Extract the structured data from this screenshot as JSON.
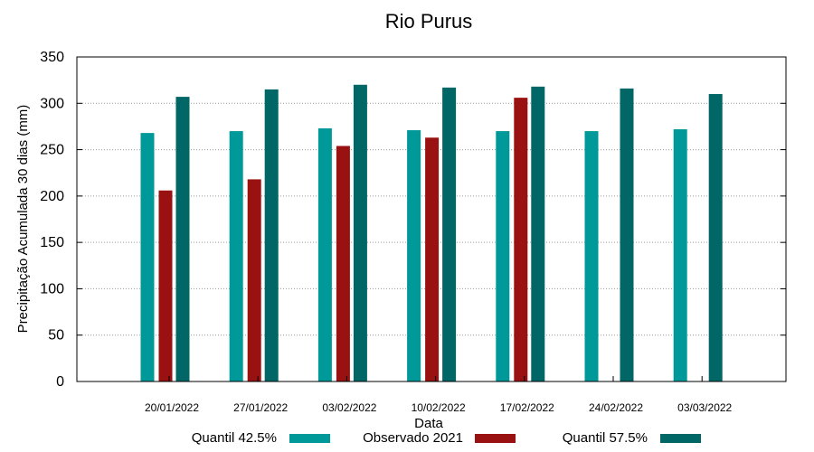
{
  "chart_data": {
    "type": "bar",
    "title": "Rio Purus",
    "xlabel": "Data",
    "ylabel": "Precipitação Acumulada 30 dias (mm)",
    "ylim": [
      0,
      350
    ],
    "yticks": [
      0,
      50,
      100,
      150,
      200,
      250,
      300,
      350
    ],
    "grid": true,
    "legend_position": "bottom",
    "categories": [
      "20/01/2022",
      "27/01/2022",
      "03/02/2022",
      "10/02/2022",
      "17/02/2022",
      "24/02/2022",
      "03/03/2022"
    ],
    "series": [
      {
        "name": "Quantil 42.5%",
        "color": "#009999",
        "values": [
          268,
          270,
          273,
          271,
          270,
          270,
          272
        ]
      },
      {
        "name": "Observado 2021",
        "color": "#991111",
        "values": [
          206,
          218,
          254,
          263,
          306,
          null,
          null
        ]
      },
      {
        "name": "Quantil 57.5%",
        "color": "#006666",
        "values": [
          307,
          315,
          320,
          317,
          318,
          316,
          310
        ]
      }
    ]
  }
}
